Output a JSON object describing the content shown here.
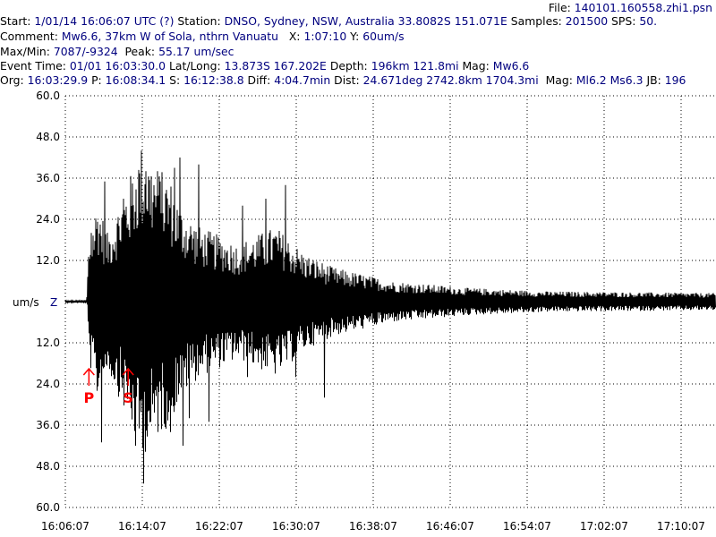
{
  "header": {
    "file_label": "File:",
    "file_value": "140101.160558.zhi1.psn",
    "start_label": "Start:",
    "start_value": "1/01/14 16:06:07 UTC (?)",
    "station_label": "Station:",
    "station_value": "DNSO, Sydney, NSW, Australia 33.8082S 151.071E",
    "samples_label": "Samples:",
    "samples_value": "201500",
    "sps_label": "SPS:",
    "sps_value": "50.",
    "comment_label": "Comment:",
    "comment_value": "Mw6.6, 37km W of Sola, nthrn Vanuatu",
    "x_label": "X:",
    "x_value": "1:07:10",
    "y_label": "Y:",
    "y_value": "60um/s",
    "maxmin_label": "Max/Min:",
    "maxmin_value": "7087/-9324",
    "peak_label": "Peak:",
    "peak_value": "55.17 um/sec",
    "event_label": "Event Time:",
    "event_value": "01/01 16:03:30.0",
    "latlong_label": "Lat/Long:",
    "latlong_value": "13.873S 167.202E",
    "depth_label": "Depth:",
    "depth_value": "196km 121.8mi",
    "mag_label": "Mag:",
    "mag_value": "Mw6.6",
    "org_label": "Org:",
    "org_value": "16:03:29.9",
    "p_label": "P:",
    "p_value": "16:08:34.1",
    "s_label": "S:",
    "s_value": "16:12:38.8",
    "diff_label": "Diff:",
    "diff_value": "4:04.7min",
    "dist_label": "Dist:",
    "dist_value": "24.671deg 2742.8km 1704.3mi",
    "mag2_label": "Mag:",
    "mag2_value": "Ml6.2 Ms6.3",
    "jb_label": "JB:",
    "jb_value": "196"
  },
  "colors": {
    "label": "#000000",
    "value": "#00007f",
    "trace": "#000000",
    "marker": "#ff0000"
  },
  "chart_data": {
    "type": "line",
    "ylabel": "um/s",
    "channel": "Z",
    "ylim": [
      -60,
      60
    ],
    "y_tick_labels": [
      "60.0",
      "48.0",
      "36.0",
      "24.0",
      "12.0",
      "",
      "12.0",
      "24.0",
      "36.0",
      "48.0",
      "60.0"
    ],
    "y_tick_values": [
      60,
      48,
      36,
      24,
      12,
      0,
      -12,
      -24,
      -36,
      -48,
      -60
    ],
    "x_tick_labels": [
      "16:06:07",
      "16:14:07",
      "16:22:07",
      "16:30:07",
      "16:38:07",
      "16:46:07",
      "16:54:07",
      "17:02:07",
      "17:10:07"
    ],
    "x_start": "16:06:07",
    "x_tick_interval_minutes": 8,
    "x_span": "1:07:10",
    "phases": [
      {
        "label": "P",
        "time": "16:08:34.1"
      },
      {
        "label": "S",
        "time": "16:12:38.8"
      }
    ],
    "envelope": [
      {
        "time": "16:06:07",
        "amp": 0.3
      },
      {
        "time": "16:08:20",
        "amp": 0.5
      },
      {
        "time": "16:08:34",
        "amp": 18
      },
      {
        "time": "16:09:30",
        "amp": 30
      },
      {
        "time": "16:10:30",
        "amp": 20
      },
      {
        "time": "16:12:38",
        "amp": 35
      },
      {
        "time": "16:14:00",
        "amp": 46
      },
      {
        "time": "16:15:30",
        "amp": 40
      },
      {
        "time": "16:17:00",
        "amp": 36
      },
      {
        "time": "16:18:00",
        "amp": 28
      },
      {
        "time": "16:20:00",
        "amp": 22
      },
      {
        "time": "16:24:00",
        "amp": 17
      },
      {
        "time": "16:28:00",
        "amp": 22
      },
      {
        "time": "16:31:00",
        "amp": 14
      },
      {
        "time": "16:34:00",
        "amp": 10
      },
      {
        "time": "16:40:00",
        "amp": 6
      },
      {
        "time": "16:48:00",
        "amp": 4
      },
      {
        "time": "16:56:00",
        "amp": 3
      },
      {
        "time": "17:13:17",
        "amp": 2.5
      }
    ],
    "spikes": [
      {
        "time": "16:08:50",
        "value": 20
      },
      {
        "time": "16:09:50",
        "value": -41
      },
      {
        "time": "16:10:10",
        "value": 35
      },
      {
        "time": "16:11:00",
        "value": -20
      },
      {
        "time": "16:12:10",
        "value": 30
      },
      {
        "time": "16:13:20",
        "value": -42
      },
      {
        "time": "16:14:00",
        "value": 36
      },
      {
        "time": "16:14:10",
        "value": -53
      },
      {
        "time": "16:14:30",
        "value": 38
      },
      {
        "time": "16:15:00",
        "value": -35
      },
      {
        "time": "16:16:00",
        "value": 35
      },
      {
        "time": "16:17:00",
        "value": -38
      },
      {
        "time": "16:17:30",
        "value": 39
      },
      {
        "time": "16:18:00",
        "value": 42
      },
      {
        "time": "16:18:20",
        "value": -42
      },
      {
        "time": "16:19:00",
        "value": -34
      },
      {
        "time": "16:20:00",
        "value": 40
      },
      {
        "time": "16:21:00",
        "value": -35
      },
      {
        "time": "16:24:30",
        "value": 28
      },
      {
        "time": "16:25:00",
        "value": -22
      },
      {
        "time": "16:27:00",
        "value": 30
      },
      {
        "time": "16:29:00",
        "value": 34
      },
      {
        "time": "16:30:00",
        "value": -22
      },
      {
        "time": "16:33:00",
        "value": -28
      }
    ]
  }
}
